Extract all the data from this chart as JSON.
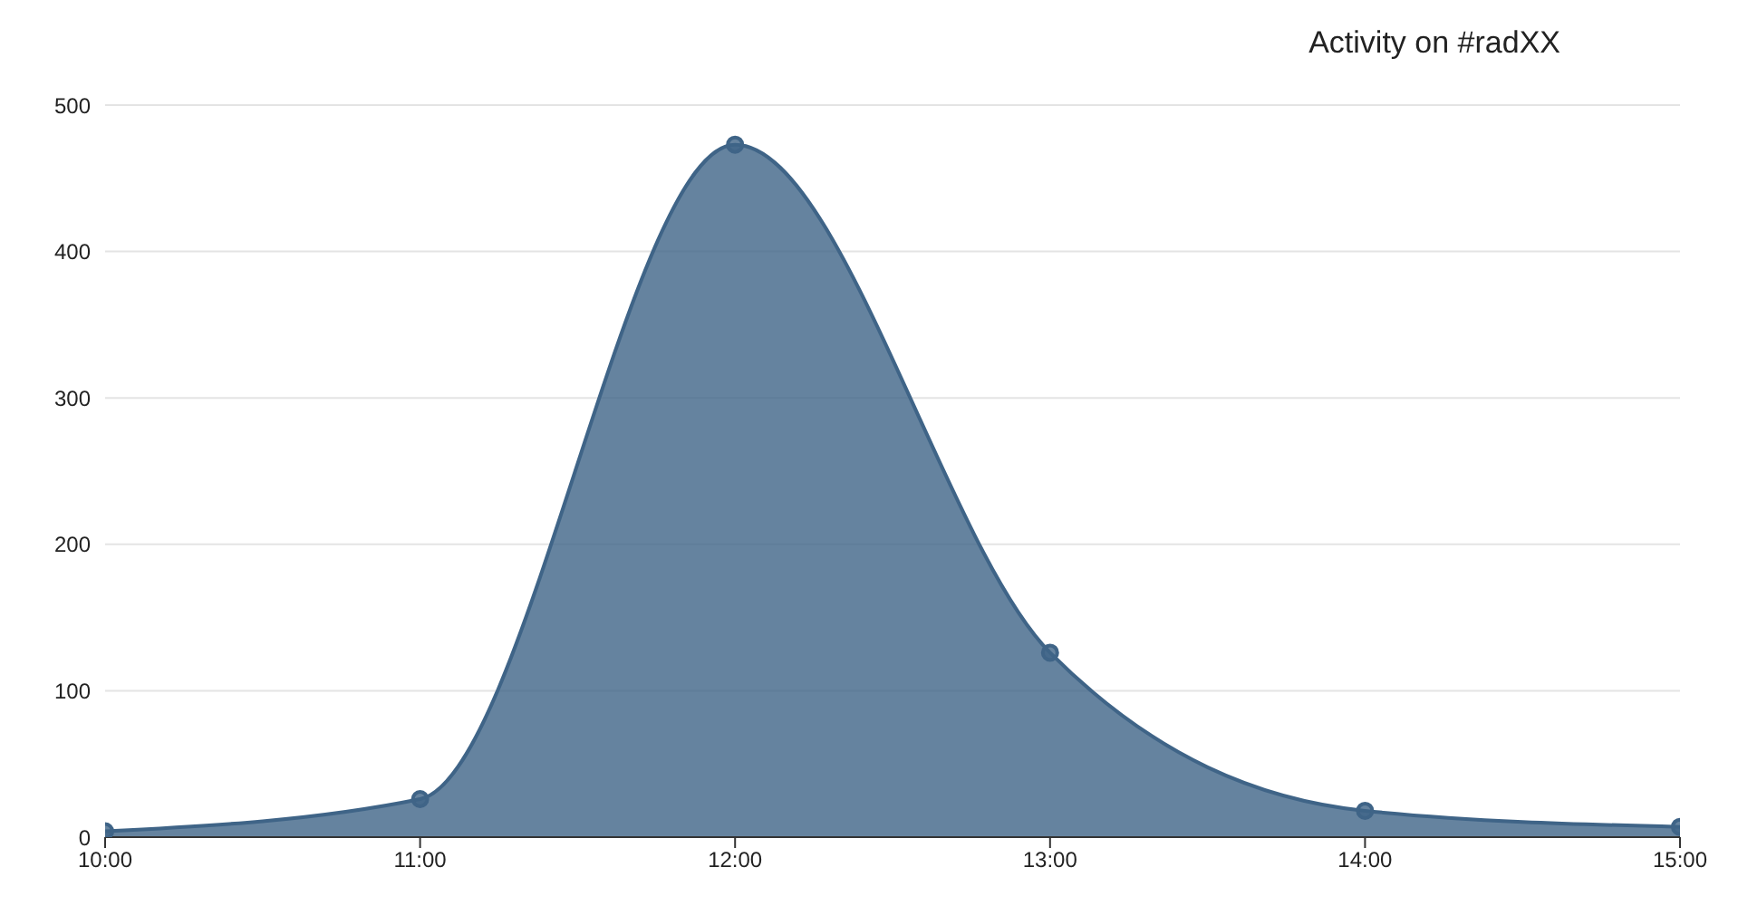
{
  "chart_data": {
    "type": "area",
    "title": "Activity on #radXX",
    "x": [
      10,
      11,
      12,
      13,
      14,
      15
    ],
    "series": [
      {
        "color": "#3f6487",
        "values": [
          4,
          26,
          473,
          126,
          18,
          7
        ]
      }
    ],
    "xlim": [
      10,
      15
    ],
    "xticks": [
      {
        "value": 10,
        "label": "10:00"
      },
      {
        "value": 11,
        "label": "11:00"
      },
      {
        "value": 12,
        "label": "12:00"
      },
      {
        "value": 13,
        "label": "13:00"
      },
      {
        "value": 14,
        "label": "14:00"
      },
      {
        "value": 15,
        "label": "15:00"
      }
    ],
    "ylim": [
      0,
      500
    ],
    "yticks": [
      0,
      100,
      200,
      300,
      400,
      500
    ],
    "grid": "y",
    "marker": "circle"
  }
}
